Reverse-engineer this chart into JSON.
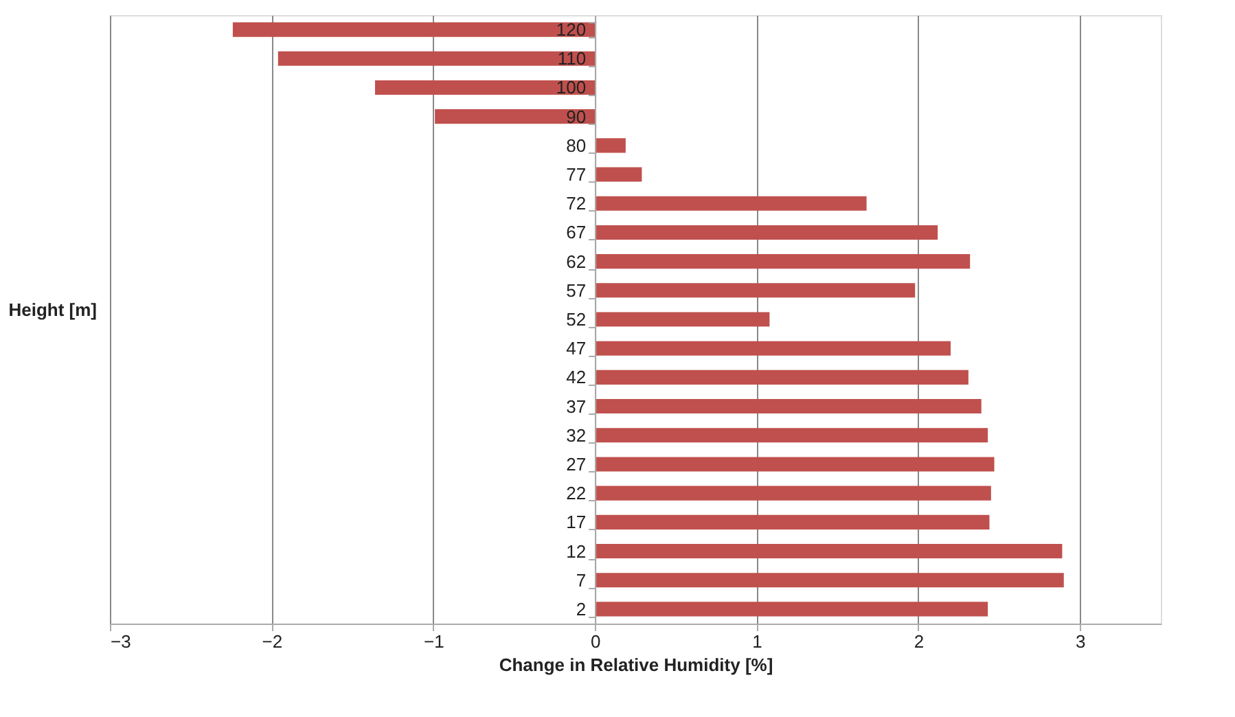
{
  "chart_data": {
    "type": "bar",
    "orientation": "horizontal",
    "xlabel": "Change in Relative Humidity [%]",
    "ylabel": "Height [m]",
    "categories": [
      "120",
      "110",
      "100",
      "90",
      "80",
      "77",
      "72",
      "67",
      "62",
      "57",
      "52",
      "47",
      "42",
      "37",
      "32",
      "27",
      "22",
      "17",
      "12",
      "7",
      "2"
    ],
    "values": [
      -2.24,
      -1.96,
      -1.36,
      -0.99,
      0.19,
      0.29,
      1.68,
      2.12,
      2.32,
      1.98,
      1.08,
      2.2,
      2.31,
      2.39,
      2.43,
      2.47,
      2.45,
      2.44,
      2.89,
      2.9,
      2.43
    ],
    "color": "#c0504d",
    "xlim": [
      -3,
      3.5
    ],
    "xticks": [
      -3,
      -2,
      -1,
      0,
      1,
      2,
      3
    ],
    "grid": "x"
  }
}
